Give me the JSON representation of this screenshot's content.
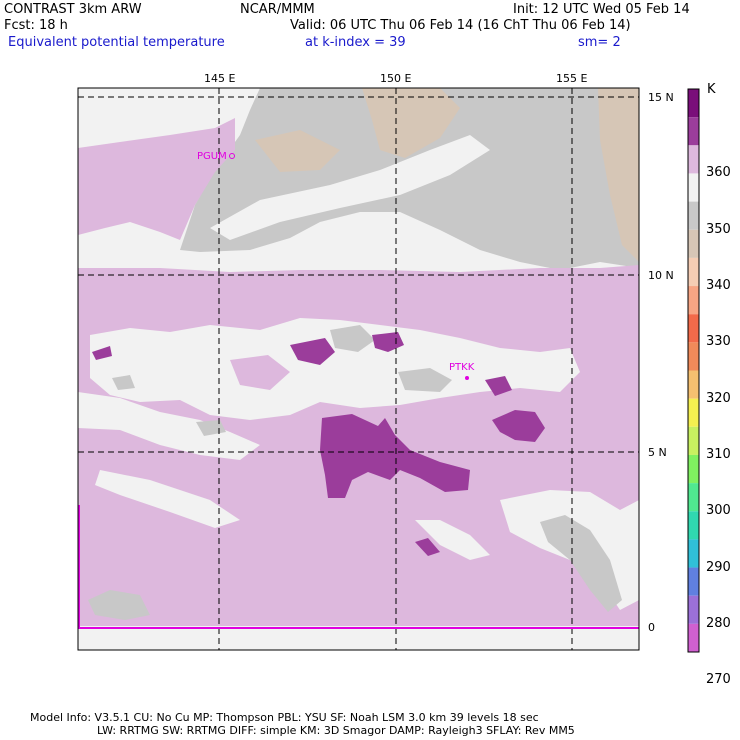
{
  "header": {
    "title": "CONTRAST  3km ARW",
    "center": "NCAR/MMM",
    "init": "Init: 12 UTC Wed 05 Feb 14",
    "fcst": "Fcst:   18 h",
    "valid": "Valid: 06 UTC Thu 06 Feb 14 (16 ChT Thu 06 Feb 14)",
    "field": "Equivalent potential temperature",
    "level": "at k-index =  39",
    "smooth": "sm= 2"
  },
  "axes": {
    "lon_labels": [
      "145 E",
      "150 E",
      "155 E"
    ],
    "lat_labels": [
      "15 N",
      "10 N",
      "5 N",
      "0"
    ]
  },
  "stations": [
    "PGUM",
    "PTKK"
  ],
  "colorbar": {
    "unit": "K",
    "labels": [
      "360",
      "350",
      "340",
      "330",
      "320",
      "310",
      "300",
      "290",
      "280",
      "270"
    ],
    "colors": [
      "#7a0f7a",
      "#9b3d9b",
      "#ddb8dd",
      "#f2f2f2",
      "#c8c8c8",
      "#d6c6b6",
      "#f5cdb4",
      "#f7a584",
      "#f26a4a",
      "#f08a5a",
      "#f5c070",
      "#f5f050",
      "#c8f060",
      "#80f060",
      "#50e890",
      "#30d8b0",
      "#30c0d8",
      "#6080e0",
      "#9b70d8",
      "#d060d0"
    ]
  },
  "footer": {
    "line1": "Model Info: V3.5.1    CU: No Cu     MP: Thompson     PBL: YSU      SF: Noah LSM     3.0 km   39 levels   18 sec",
    "line2": "LW: RRTMG     SW: RRTMG   DIFF: simple KM: 3D Smagor DAMP: Rayleigh3   SFLAY: Rev MM5"
  },
  "colors": {
    "light_purple": "#ddb8dd",
    "dark_purple": "#9b3d9b",
    "near_white": "#f2f2f2",
    "gray": "#c8c8c8",
    "tan": "#d6c6b6",
    "magenta": "#e000e0"
  }
}
